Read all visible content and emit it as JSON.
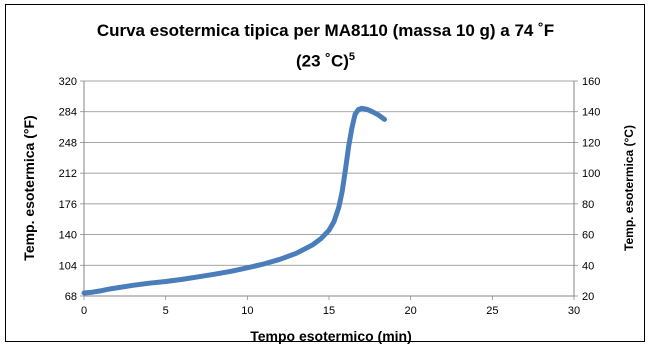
{
  "chart_data": {
    "type": "line",
    "title_main": "Curva esotermica tipica per MA8110 (massa 10 g) a 74 ˚F",
    "title_line2": "(23 ˚C)",
    "title_sup": "5",
    "xlabel": "Tempo esotermico (min)",
    "ylabel_left": "Temp. esotermica (°F)",
    "ylabel_right": "Temp. esotermica (°C)",
    "xlim": [
      0,
      30
    ],
    "ylim_left": [
      68,
      320
    ],
    "ylim_right": [
      20,
      160
    ],
    "x_ticks": [
      "0",
      "5",
      "10",
      "15",
      "20",
      "25",
      "30"
    ],
    "y_left_ticks": [
      "68",
      "104",
      "140",
      "176",
      "212",
      "248",
      "284",
      "320"
    ],
    "y_right_ticks": [
      "20",
      "40",
      "60",
      "80",
      "100",
      "120",
      "140",
      "160"
    ],
    "grid": true,
    "series_color": "#4a7ebb",
    "series": [
      {
        "values": [
          [
            0,
            71.5
          ],
          [
            0.5,
            72.5
          ],
          [
            1,
            74
          ],
          [
            1.5,
            76
          ],
          [
            2,
            77.5
          ],
          [
            3,
            80.5
          ],
          [
            4,
            83
          ],
          [
            5,
            85
          ],
          [
            6,
            87.5
          ],
          [
            7,
            90.5
          ],
          [
            8,
            93.5
          ],
          [
            9,
            97
          ],
          [
            10,
            101
          ],
          [
            11,
            105.5
          ],
          [
            12,
            111
          ],
          [
            13,
            118
          ],
          [
            14,
            128
          ],
          [
            14.5,
            135
          ],
          [
            15,
            145
          ],
          [
            15.3,
            155
          ],
          [
            15.6,
            172
          ],
          [
            15.8,
            190
          ],
          [
            16,
            215
          ],
          [
            16.2,
            243
          ],
          [
            16.4,
            265
          ],
          [
            16.6,
            281
          ],
          [
            16.8,
            286.5
          ],
          [
            17,
            288
          ],
          [
            17.3,
            287
          ],
          [
            17.6,
            284.5
          ],
          [
            18,
            280.5
          ],
          [
            18.4,
            275
          ]
        ]
      }
    ]
  }
}
